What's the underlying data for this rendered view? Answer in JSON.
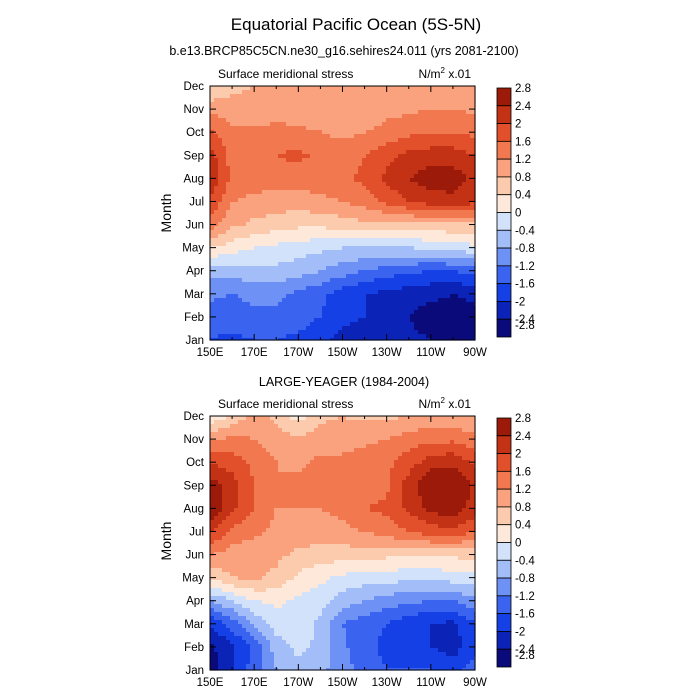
{
  "figure": {
    "title": "Equatorial Pacific Ocean (5S-5N)"
  },
  "colors": [
    "#0a0a7a",
    "#0c23b8",
    "#1540e6",
    "#3a64f0",
    "#6e91f5",
    "#a2bdf7",
    "#d3e2fb",
    "#fde8da",
    "#fccbad",
    "#f9a27d",
    "#f2794f",
    "#e1502a",
    "#c43215",
    "#9c1a09"
  ],
  "colorbar_levels": [
    2.8,
    2.4,
    2,
    1.6,
    1.2,
    0.8,
    0.4,
    0,
    -0.4,
    -0.8,
    -1.2,
    -1.6,
    -2,
    -2.4,
    -2.8
  ],
  "chart_data": [
    {
      "type": "heatmap",
      "title": "b.e13.BRCP85C5CN.ne30_g16.sehires24.011 (yrs 2081-2100)",
      "label_left": "Surface meridional stress",
      "units_base": "N/m",
      "units_exp": "2",
      "units_suffix": " x.01",
      "ylabel": "Month",
      "x_ticks": [
        "150E",
        "170E",
        "170W",
        "150W",
        "130W",
        "110W",
        "90W"
      ],
      "y_ticks": [
        "Jan",
        "Feb",
        "Mar",
        "Apr",
        "May",
        "Jun",
        "Jul",
        "Aug",
        "Sep",
        "Oct",
        "Nov",
        "Dec"
      ],
      "x_lon": [
        150,
        160,
        170,
        180,
        190,
        200,
        210,
        220,
        230,
        240,
        250,
        260,
        270
      ],
      "z": [
        [
          -2.0,
          -2.1,
          -2.0,
          -2.0,
          -2.1,
          -2.3,
          -2.5,
          -2.6,
          -2.6,
          -2.7,
          -2.8,
          -2.9,
          -2.8
        ],
        [
          -1.8,
          -1.8,
          -1.7,
          -1.7,
          -1.8,
          -2.0,
          -2.3,
          -2.4,
          -2.6,
          -2.8,
          -3.0,
          -3.0,
          -2.9
        ],
        [
          -1.5,
          -1.6,
          -1.5,
          -1.5,
          -1.7,
          -1.9,
          -2.2,
          -2.4,
          -2.5,
          -2.6,
          -2.7,
          -2.8,
          -2.7
        ],
        [
          -1.0,
          -1.0,
          -0.9,
          -0.9,
          -1.0,
          -1.2,
          -1.4,
          -1.6,
          -1.8,
          -1.9,
          -2.0,
          -2.0,
          -1.8
        ],
        [
          0.0,
          -0.2,
          -0.4,
          -0.5,
          -0.6,
          -0.7,
          -0.8,
          -0.8,
          -0.8,
          -0.8,
          -0.7,
          -0.6,
          -0.5
        ],
        [
          1.0,
          0.5,
          0.3,
          0.2,
          0.1,
          0.1,
          0.2,
          0.3,
          0.3,
          0.3,
          0.3,
          0.3,
          0.3
        ],
        [
          1.6,
          0.8,
          0.7,
          0.6,
          0.6,
          0.7,
          0.8,
          1.0,
          1.3,
          1.6,
          1.8,
          1.9,
          1.7
        ],
        [
          1.9,
          1.1,
          1.0,
          1.0,
          1.0,
          1.0,
          1.1,
          1.3,
          1.7,
          2.0,
          2.2,
          2.2,
          1.9
        ],
        [
          1.8,
          1.0,
          1.1,
          1.2,
          1.3,
          1.1,
          1.0,
          1.2,
          1.5,
          1.7,
          1.8,
          1.8,
          1.6
        ],
        [
          1.3,
          0.9,
          0.9,
          1.0,
          0.9,
          0.8,
          0.7,
          0.8,
          0.9,
          1.1,
          1.2,
          1.2,
          1.1
        ],
        [
          0.7,
          0.6,
          0.5,
          0.5,
          0.5,
          0.6,
          0.6,
          0.6,
          0.7,
          0.7,
          0.8,
          0.8,
          0.7
        ],
        [
          -0.1,
          0.3,
          0.4,
          0.4,
          0.4,
          0.4,
          0.4,
          0.4,
          0.5,
          0.5,
          0.5,
          0.5,
          0.5
        ]
      ]
    },
    {
      "type": "heatmap",
      "title": "LARGE-YEAGER (1984-2004)",
      "label_left": "Surface meridional stress",
      "units_base": "N/m",
      "units_exp": "2",
      "units_suffix": " x.01",
      "ylabel": "Month",
      "x_ticks": [
        "150E",
        "170E",
        "170W",
        "150W",
        "130W",
        "110W",
        "90W"
      ],
      "y_ticks": [
        "Jan",
        "Feb",
        "Mar",
        "Apr",
        "May",
        "Jun",
        "Jul",
        "Aug",
        "Sep",
        "Oct",
        "Nov",
        "Dec"
      ],
      "x_lon": [
        150,
        160,
        170,
        180,
        190,
        200,
        210,
        220,
        230,
        240,
        250,
        260,
        270
      ],
      "z": [
        [
          -3.0,
          -2.4,
          -1.8,
          -1.2,
          -0.9,
          -1.1,
          -1.4,
          -1.8,
          -2.0,
          -2.0,
          -2.0,
          -2.2,
          -1.8
        ],
        [
          -2.9,
          -2.5,
          -1.9,
          -1.0,
          -0.7,
          -0.9,
          -1.5,
          -1.9,
          -2.1,
          -2.3,
          -2.4,
          -2.6,
          -2.1
        ],
        [
          -2.4,
          -1.8,
          -1.1,
          -0.6,
          -0.5,
          -0.9,
          -1.6,
          -1.8,
          -2.0,
          -2.3,
          -2.4,
          -2.5,
          -2.0
        ],
        [
          -1.2,
          -0.8,
          -0.4,
          -0.3,
          -0.5,
          -0.6,
          -1.0,
          -1.2,
          -1.4,
          -1.5,
          -1.6,
          -1.6,
          -1.3
        ],
        [
          0.1,
          0.4,
          0.5,
          0.3,
          -0.1,
          -0.3,
          -0.5,
          -0.6,
          -0.6,
          -0.7,
          -0.7,
          -0.6,
          -0.5
        ],
        [
          0.8,
          0.6,
          0.5,
          0.5,
          0.3,
          0.2,
          0.2,
          0.2,
          0.1,
          0.1,
          0.1,
          0.1,
          0.1
        ],
        [
          1.7,
          1.1,
          0.9,
          0.7,
          0.7,
          0.6,
          0.7,
          0.8,
          1.0,
          1.2,
          1.4,
          1.5,
          1.2
        ],
        [
          2.5,
          1.7,
          1.2,
          0.8,
          0.8,
          0.8,
          0.9,
          1.2,
          1.3,
          1.7,
          2.1,
          2.3,
          1.8
        ],
        [
          2.2,
          1.8,
          1.2,
          0.8,
          0.9,
          0.9,
          1.2,
          1.0,
          1.1,
          1.8,
          2.4,
          2.5,
          1.9
        ],
        [
          1.6,
          1.4,
          1.1,
          0.8,
          0.7,
          0.9,
          0.9,
          1.0,
          1.1,
          1.4,
          1.8,
          1.9,
          1.5
        ],
        [
          0.7,
          0.9,
          0.8,
          0.6,
          0.5,
          0.6,
          0.6,
          0.7,
          0.8,
          1.0,
          1.1,
          1.1,
          0.9
        ],
        [
          -0.4,
          0.1,
          0.5,
          0.3,
          -0.2,
          0.3,
          0.4,
          0.3,
          0.3,
          0.4,
          0.5,
          0.5,
          0.4
        ]
      ]
    }
  ]
}
